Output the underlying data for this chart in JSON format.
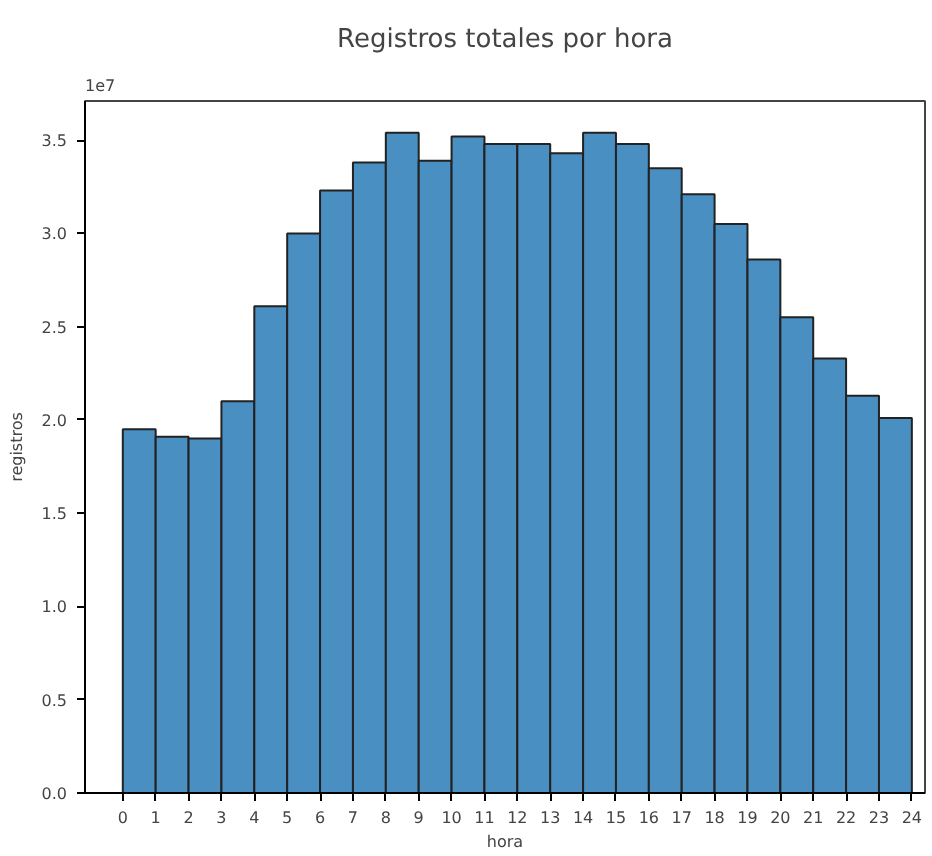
{
  "chart_data": {
    "type": "histogram",
    "title": "Registros totales por hora",
    "xlabel": "hora",
    "ylabel": "registros",
    "annotations": [
      "1e7"
    ],
    "bins": [
      0,
      1,
      2,
      3,
      4,
      5,
      6,
      7,
      8,
      9,
      10,
      11,
      12,
      13,
      14,
      15,
      16,
      17,
      18,
      19,
      20,
      21,
      22,
      23,
      24
    ],
    "values": [
      1.95,
      1.91,
      1.9,
      2.1,
      2.61,
      3.0,
      3.23,
      3.38,
      3.54,
      3.39,
      3.52,
      3.48,
      3.48,
      3.43,
      3.54,
      3.48,
      3.35,
      3.21,
      3.05,
      2.86,
      2.55,
      2.33,
      2.13,
      2.01
    ],
    "color": "#4a8fc1",
    "xlim": [
      -1.15,
      24.4
    ],
    "xticks": [
      0,
      1,
      2,
      3,
      4,
      5,
      6,
      7,
      8,
      9,
      10,
      11,
      12,
      13,
      14,
      15,
      16,
      17,
      18,
      19,
      20,
      21,
      22,
      23,
      24
    ],
    "ylim": [
      0,
      3.71
    ],
    "yticks": [
      {
        "value": 0,
        "label": "0.0"
      },
      {
        "value": 0.5,
        "label": "0.5"
      },
      {
        "value": 1,
        "label": "1.0"
      },
      {
        "value": 1.5,
        "label": "1.5"
      },
      {
        "value": 2,
        "label": "2.0"
      },
      {
        "value": 2.5,
        "label": "2.5"
      },
      {
        "value": 3,
        "label": "3.0"
      },
      {
        "value": 3.5,
        "label": "3.5"
      }
    ],
    "grid": false
  }
}
